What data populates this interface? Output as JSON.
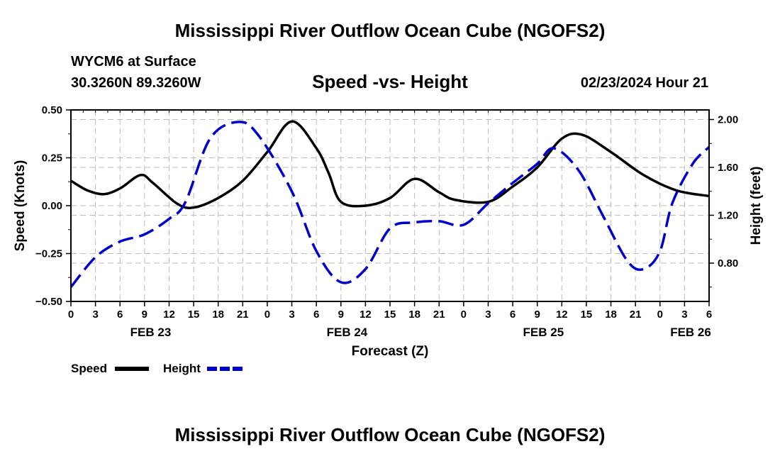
{
  "header": {
    "title": "Mississippi River Outflow Ocean Cube (NGOFS2)",
    "station": "WYCM6 at Surface",
    "coords": "30.3260N  89.3260W",
    "subtitle": "Speed -vs- Height",
    "datetime": "02/23/2024 Hour 21"
  },
  "footer": {
    "title": "Mississippi River Outflow Ocean Cube (NGOFS2)"
  },
  "legend": {
    "speed_label": "Speed",
    "height_label": "Height"
  },
  "colors": {
    "speed": "#000000",
    "height": "#0000cc",
    "grid": "#bdbdbd"
  },
  "chart_data": {
    "type": "line",
    "xlabel": "Forecast (Z)",
    "ylabel_left": "Speed (Knots)",
    "ylabel_right": "Height (feet)",
    "x_unit": "hours since 2024-02-23 00Z",
    "xlim": [
      0,
      78
    ],
    "ylim_left": [
      -0.5,
      0.5
    ],
    "ylim_right": [
      0.48,
      2.08
    ],
    "left_ticks": [
      "0.50",
      "0.25",
      "0.00",
      "−0.25",
      "−0.50"
    ],
    "left_tick_values": [
      0.5,
      0.25,
      0.0,
      -0.25,
      -0.5
    ],
    "right_ticks": [
      "2.00",
      "1.60",
      "1.20",
      "0.80"
    ],
    "right_tick_values": [
      2.0,
      1.6,
      1.2,
      0.8
    ],
    "x_ticks": [
      "0",
      "3",
      "6",
      "9",
      "12",
      "15",
      "18",
      "21",
      "0",
      "3",
      "6",
      "9",
      "12",
      "15",
      "18",
      "21",
      "0",
      "3",
      "6",
      "9",
      "12",
      "15",
      "18",
      "21",
      "0",
      "3",
      "6"
    ],
    "date_labels": [
      {
        "label": "FEB 23",
        "x": 9.75
      },
      {
        "label": "FEB 24",
        "x": 33.75
      },
      {
        "label": "FEB 25",
        "x": 57.75
      },
      {
        "label": "FEB 26",
        "x": 75.75
      }
    ],
    "series": [
      {
        "name": "Speed",
        "axis": "left",
        "style": "solid",
        "x": [
          0,
          2,
          4,
          6,
          8.5,
          10,
          13,
          15,
          18,
          21,
          24,
          27,
          30,
          31.5,
          33,
          36,
          39,
          42,
          45,
          47,
          51,
          54,
          57,
          60,
          62.5,
          66,
          70,
          74,
          78
        ],
        "values": [
          0.13,
          0.08,
          0.06,
          0.09,
          0.16,
          0.12,
          0.01,
          -0.01,
          0.04,
          0.13,
          0.28,
          0.44,
          0.3,
          0.17,
          0.02,
          0.0,
          0.04,
          0.14,
          0.07,
          0.03,
          0.02,
          0.1,
          0.2,
          0.35,
          0.37,
          0.28,
          0.16,
          0.08,
          0.05
        ]
      },
      {
        "name": "Height",
        "axis": "right",
        "style": "dashed",
        "x": [
          0,
          3,
          6,
          9,
          12,
          14,
          17,
          20.5,
          23,
          27,
          30,
          33,
          36,
          39,
          42,
          45,
          48,
          51,
          54,
          57,
          59,
          62,
          65,
          68,
          70,
          72,
          73.5,
          76,
          78
        ],
        "values": [
          0.6,
          0.85,
          0.98,
          1.04,
          1.17,
          1.31,
          1.84,
          1.98,
          1.86,
          1.4,
          0.9,
          0.64,
          0.75,
          1.09,
          1.14,
          1.15,
          1.12,
          1.3,
          1.47,
          1.63,
          1.76,
          1.58,
          1.2,
          0.82,
          0.75,
          0.9,
          1.3,
          1.63,
          1.77
        ]
      }
    ]
  }
}
